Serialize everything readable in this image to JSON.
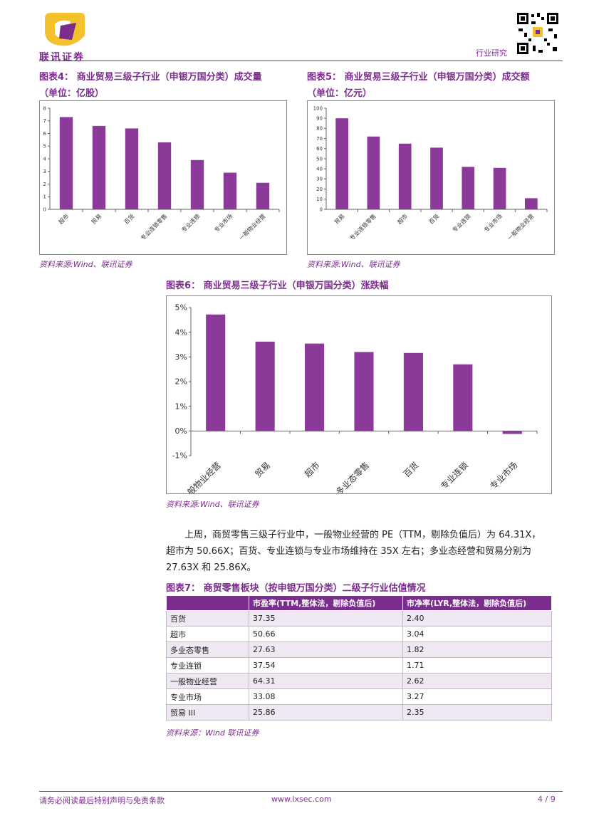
{
  "header": {
    "logo_text": "联讯证券",
    "section_label": "行业研究"
  },
  "fig4": {
    "title_line1": "图表4：  商业贸易三级子行业（申银万国分类）成交量",
    "title_line2": "（单位：亿股）",
    "source": "资料来源:Wind、联讯证券"
  },
  "fig5": {
    "title_line1": "图表5：  商业贸易三级子行业（申银万国分类）成交额",
    "title_line2": "（单位：亿元）",
    "source": "资料来源:Wind、联讯证券"
  },
  "fig6": {
    "title": "图表6：  商业贸易三级子行业（申银万国分类）涨跌幅",
    "source": "资料来源:Wind、联讯证券"
  },
  "paragraph": {
    "line1": "上周，商贸零售三级子行业中，一般物业经营的 PE（TTM，剔除负值后）为 64.31X，",
    "line2": "超市为 50.66X；百货、专业连锁与专业市场维持在 35X 左右；多业态经营和贸易分别为",
    "line3": "27.63X 和 25.86X。"
  },
  "fig7": {
    "title": "图表7：  商贸零售板块（按申银万国分类）二级子行业估值情况",
    "columns": [
      "",
      "市盈率(TTM,整体法，剔除负值后)",
      "市净率(LYR,整体法，剔除负值后)"
    ],
    "rows": [
      [
        "百货",
        "37.35",
        "2.40"
      ],
      [
        "超市",
        "50.66",
        "3.04"
      ],
      [
        "多业态零售",
        "27.63",
        "1.82"
      ],
      [
        "专业连锁",
        "37.54",
        "1.71"
      ],
      [
        "一般物业经营",
        "64.31",
        "2.62"
      ],
      [
        "专业市场",
        "33.08",
        "3.27"
      ],
      [
        "贸易 III",
        "25.86",
        "2.35"
      ]
    ],
    "source": "资料来源：Wind  联讯证券"
  },
  "footer": {
    "disclaimer": "请务必阅读最后特别声明与免责条款",
    "website": "www.lxsec.com",
    "page": "4 / 9"
  },
  "colors": {
    "accent": "#7b2d8e",
    "bar": "#8b3a9a"
  },
  "chart_data": [
    {
      "type": "bar",
      "categories": [
        "超市",
        "贸易",
        "百货",
        "专业连锁零售",
        "专业连锁",
        "专业市场",
        "一般物业经营"
      ],
      "values": [
        7.3,
        6.6,
        6.4,
        5.3,
        3.9,
        2.9,
        2.1
      ],
      "ylim": [
        0,
        8
      ],
      "yticks": [
        "0",
        "1",
        "2",
        "3",
        "4",
        "5",
        "6",
        "7",
        "8"
      ],
      "grid": false
    },
    {
      "type": "bar",
      "categories": [
        "贸易",
        "专业连锁零售",
        "超市",
        "百货",
        "专业连锁",
        "专业市场",
        "一般物业经营"
      ],
      "values": [
        90,
        72,
        65,
        61,
        42,
        41,
        11
      ],
      "ylim": [
        0,
        100
      ],
      "yticks": [
        "0",
        "10",
        "20",
        "30",
        "40",
        "50",
        "60",
        "70",
        "80",
        "90",
        "100"
      ],
      "grid": false
    },
    {
      "type": "bar",
      "categories": [
        "一般物业经营",
        "贸易",
        "超市",
        "多业态零售",
        "百货",
        "专业连锁",
        "专业市场"
      ],
      "values": [
        4.72,
        3.62,
        3.54,
        3.2,
        3.16,
        2.7,
        -0.12
      ],
      "ylim": [
        -1,
        5
      ],
      "yticks": [
        "-1%",
        "0%",
        "1%",
        "2%",
        "3%",
        "4%",
        "5%"
      ],
      "grid": false
    }
  ]
}
